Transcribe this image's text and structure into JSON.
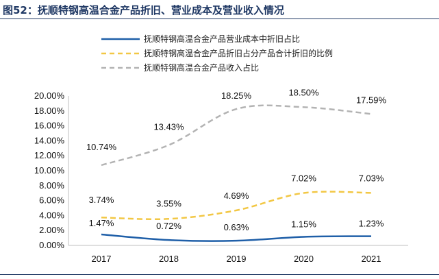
{
  "title": "图52：抚顺特钢高温合金产品折旧、营业成本及营业收入情况",
  "chart_data": {
    "type": "line",
    "categories": [
      "2017",
      "2018",
      "2019",
      "2020",
      "2021"
    ],
    "ylim": [
      0,
      20
    ],
    "yticks": [
      "0.00%",
      "2.00%",
      "4.00%",
      "6.00%",
      "8.00%",
      "10.00%",
      "12.00%",
      "14.00%",
      "16.00%",
      "18.00%",
      "20.00%"
    ],
    "legend_position": "top-left",
    "grid": false,
    "series": [
      {
        "name": "抚顺特钢高温合金产品营业成本中折旧占比",
        "values": [
          1.47,
          0.72,
          0.63,
          1.15,
          1.23
        ],
        "labels": [
          "1.47%",
          "0.72%",
          "0.63%",
          "1.15%",
          "1.23%"
        ],
        "color": "#1f5fa8",
        "style": "solid"
      },
      {
        "name": "抚顺特钢高温合金产品折旧占分产品合计折旧的比例",
        "values": [
          3.74,
          3.55,
          4.69,
          7.02,
          7.03
        ],
        "labels": [
          "3.74%",
          "3.55%",
          "4.69%",
          "7.02%",
          "7.03%"
        ],
        "color": "#f2c744",
        "style": "dashed"
      },
      {
        "name": "抚顺特钢高温合金产品收入占比",
        "values": [
          10.74,
          13.43,
          18.25,
          18.5,
          17.59
        ],
        "labels": [
          "10.74%",
          "13.43%",
          "18.25%",
          "18.50%",
          "17.59%"
        ],
        "color": "#b3b3b3",
        "style": "dashed"
      }
    ]
  }
}
